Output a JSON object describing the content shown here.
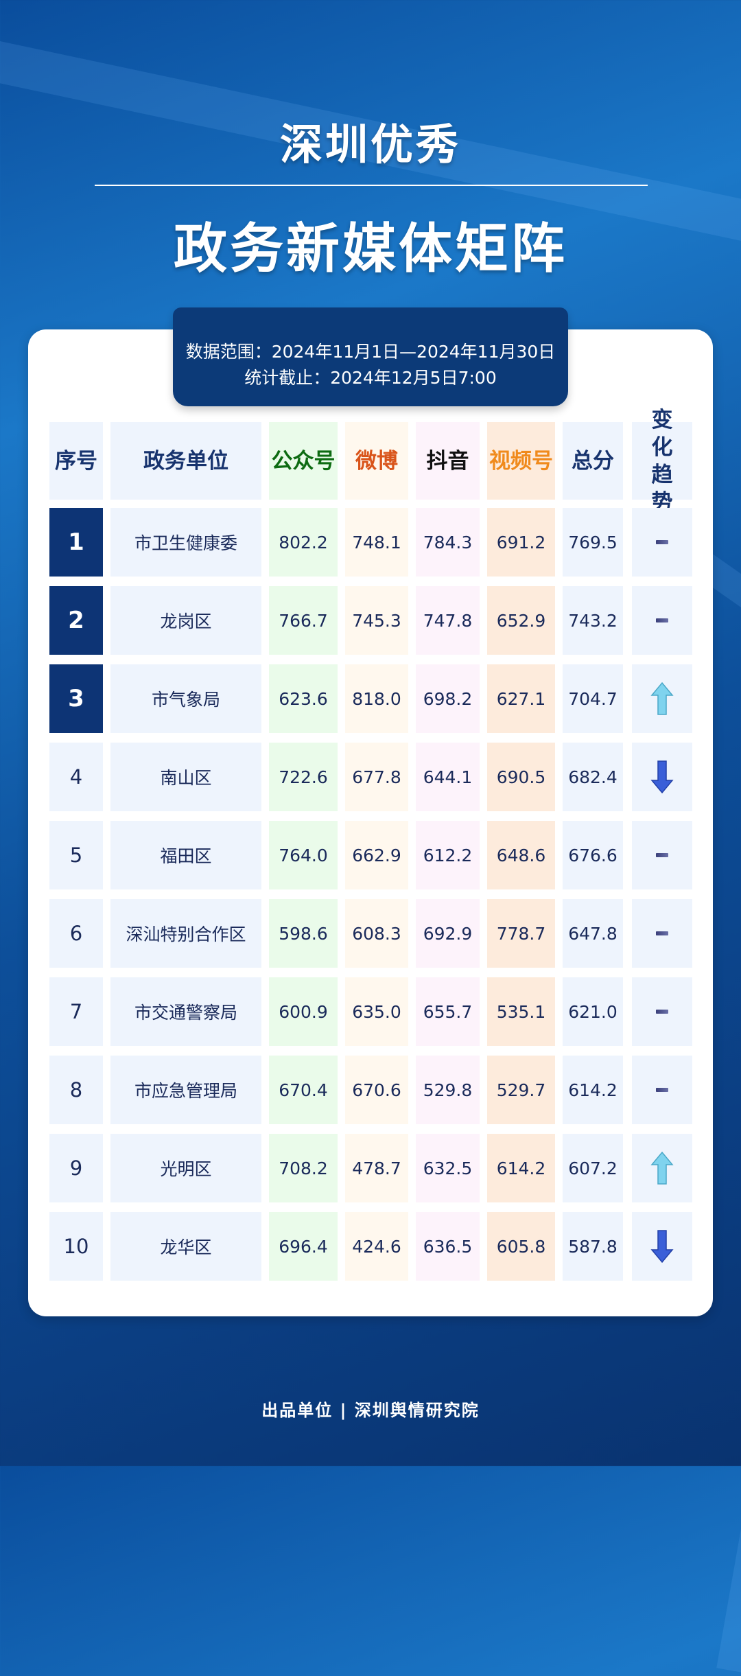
{
  "title": {
    "line1": "深圳优秀",
    "line2": "政务新媒体矩阵"
  },
  "badge": {
    "range": "数据范围：2024年11月1日—2024年11月30日",
    "cutoff": "统计截止：2024年12月5日7:00"
  },
  "table": {
    "headers": [
      "序号",
      "政务单位",
      "公众号",
      "微博",
      "抖音",
      "视频号",
      "总分",
      "变化趋势"
    ],
    "header_colors": [
      "#17336e",
      "#17336e",
      "#0d6b12",
      "#d9541a",
      "#111111",
      "#f08a1c",
      "#17336e",
      "#17336e"
    ],
    "column_bg": [
      "#eef4fd",
      "#eef4fd",
      "#eafbea",
      "#fff8ee",
      "#fdf3fb",
      "#fdebdc",
      "#eef4fd",
      "#eef4fd"
    ],
    "rows": [
      {
        "rank": "1",
        "unit": "市卫生健康委",
        "gzh": "802.2",
        "wb": "748.1",
        "dy": "784.3",
        "sph": "691.2",
        "total": "769.5",
        "trend": "flat"
      },
      {
        "rank": "2",
        "unit": "龙岗区",
        "gzh": "766.7",
        "wb": "745.3",
        "dy": "747.8",
        "sph": "652.9",
        "total": "743.2",
        "trend": "flat"
      },
      {
        "rank": "3",
        "unit": "市气象局",
        "gzh": "623.6",
        "wb": "818.0",
        "dy": "698.2",
        "sph": "627.1",
        "total": "704.7",
        "trend": "up"
      },
      {
        "rank": "4",
        "unit": "南山区",
        "gzh": "722.6",
        "wb": "677.8",
        "dy": "644.1",
        "sph": "690.5",
        "total": "682.4",
        "trend": "down"
      },
      {
        "rank": "5",
        "unit": "福田区",
        "gzh": "764.0",
        "wb": "662.9",
        "dy": "612.2",
        "sph": "648.6",
        "total": "676.6",
        "trend": "flat"
      },
      {
        "rank": "6",
        "unit": "深汕特别合作区",
        "gzh": "598.6",
        "wb": "608.3",
        "dy": "692.9",
        "sph": "778.7",
        "total": "647.8",
        "trend": "flat"
      },
      {
        "rank": "7",
        "unit": "市交通警察局",
        "gzh": "600.9",
        "wb": "635.0",
        "dy": "655.7",
        "sph": "535.1",
        "total": "621.0",
        "trend": "flat"
      },
      {
        "rank": "8",
        "unit": "市应急管理局",
        "gzh": "670.4",
        "wb": "670.6",
        "dy": "529.8",
        "sph": "529.7",
        "total": "614.2",
        "trend": "flat"
      },
      {
        "rank": "9",
        "unit": "光明区",
        "gzh": "708.2",
        "wb": "478.7",
        "dy": "632.5",
        "sph": "614.2",
        "total": "607.2",
        "trend": "up"
      },
      {
        "rank": "10",
        "unit": "龙华区",
        "gzh": "696.4",
        "wb": "424.6",
        "dy": "636.5",
        "sph": "605.8",
        "total": "587.8",
        "trend": "down"
      }
    ]
  },
  "footer": "出品单位 | 深圳舆情研究院"
}
